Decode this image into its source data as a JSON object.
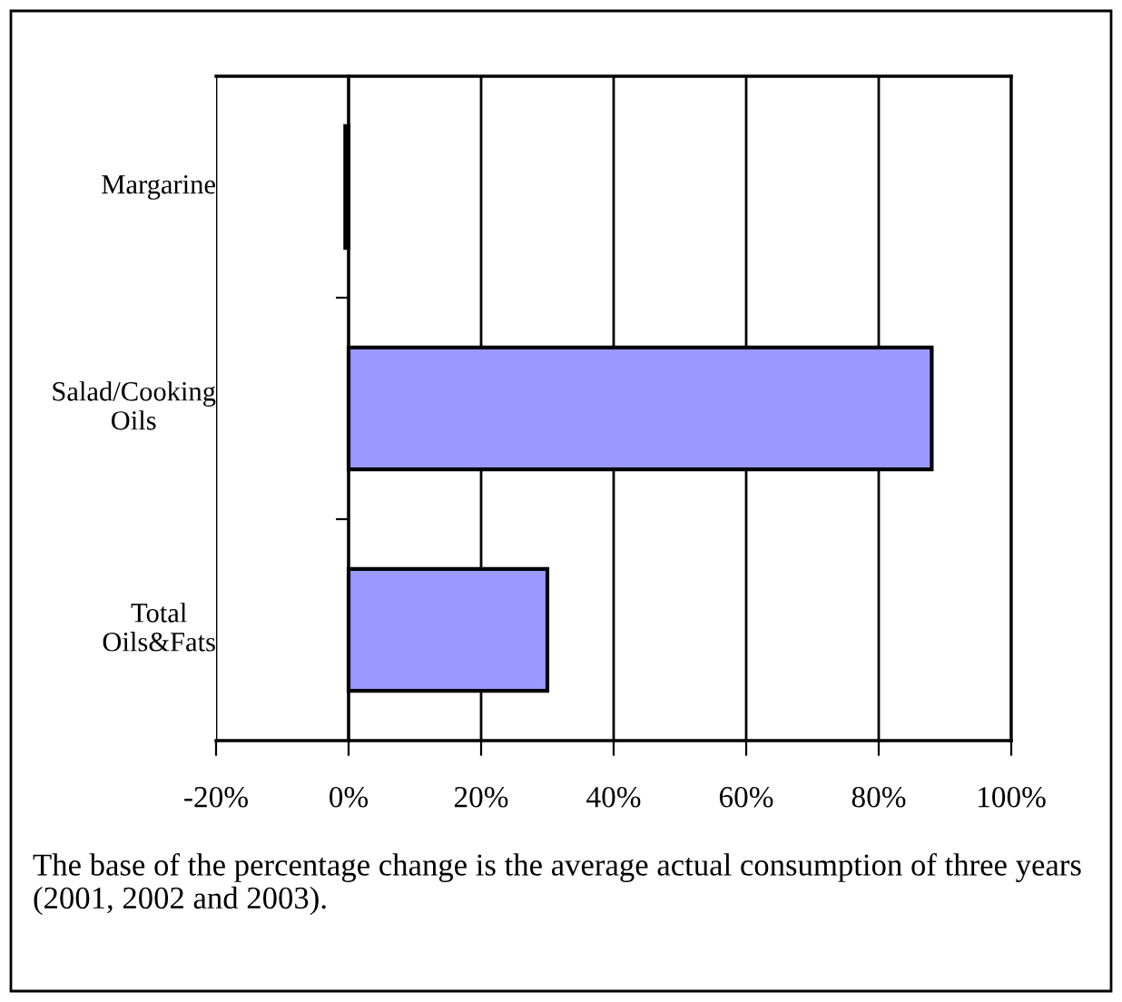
{
  "chart_data": {
    "type": "bar",
    "orientation": "horizontal",
    "categories": [
      "Margarine",
      "Salad/Cooking\nOils",
      "Total\nOils&Fats"
    ],
    "values": [
      -0.5,
      88,
      30
    ],
    "color": "#9999ff",
    "xlim": [
      -20,
      100
    ],
    "xticks": [
      {
        "value": -20,
        "label": "-20%"
      },
      {
        "value": 0,
        "label": "0%"
      },
      {
        "value": 20,
        "label": "20%"
      },
      {
        "value": 40,
        "label": "40%"
      },
      {
        "value": 60,
        "label": "60%"
      },
      {
        "value": 80,
        "label": "80%"
      },
      {
        "value": 100,
        "label": "100%"
      }
    ],
    "grid": "x",
    "annotations": [
      "The base of the percentage change is the average actual consumption of three years (2001, 2002 and 2003)."
    ]
  }
}
